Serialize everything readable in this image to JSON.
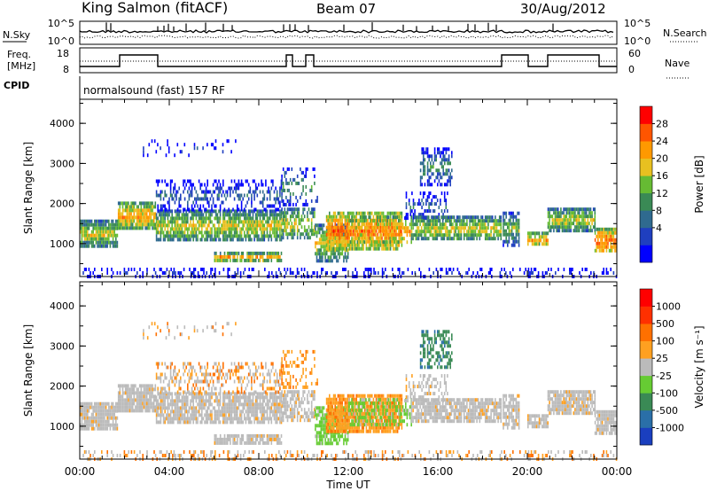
{
  "header": {
    "station": "King Salmon (fitACF)",
    "beam": "Beam 07",
    "date": "30/Aug/2012"
  },
  "panels": {
    "nsky_label": "N.Sky",
    "nsearch_label": "N.Search",
    "nsky_ticks": [
      "10^5",
      "10^0"
    ],
    "nsearch_ticks": [
      "10^5",
      "10^0"
    ],
    "freq_label_1": "Freq.",
    "freq_label_2": "[MHz]",
    "freq_ticks": [
      "18",
      "8"
    ],
    "nave_label": "Nave",
    "nave_ticks": [
      "60",
      "0"
    ],
    "cpid_label": "CPID",
    "cpid_text": "normalsound (fast) 157 RF"
  },
  "chart_data": [
    {
      "type": "heatmap",
      "name": "power",
      "ylabel": "Slant Range [km]",
      "xlabel": "Time UT",
      "xlim": [
        "00:00",
        "24:00"
      ],
      "ylim": [
        180,
        4600
      ],
      "yticks": [
        "4000",
        "3000",
        "2000",
        "1000"
      ],
      "xticks": [
        "00:00",
        "04:00",
        "08:00",
        "12:00",
        "16:00",
        "20:00",
        "00:00"
      ],
      "colorbar_label": "Power [dB]",
      "colorbar_ticks": [
        "28",
        "24",
        "20",
        "16",
        "12",
        "8",
        "4"
      ],
      "colorbar_colors": [
        "#0000ff",
        "#1f3fbf",
        "#2f6a8f",
        "#3a8a55",
        "#66bb33",
        "#e8c020",
        "#ff9900",
        "#ff5500",
        "#ff0000"
      ]
    },
    {
      "type": "heatmap",
      "name": "velocity",
      "ylabel": "Slant Range [km]",
      "xlabel": "Time UT",
      "xlim": [
        "00:00",
        "24:00"
      ],
      "ylim": [
        180,
        4600
      ],
      "yticks": [
        "4000",
        "3000",
        "2000",
        "1000"
      ],
      "xticks": [
        "00:00",
        "04:00",
        "08:00",
        "12:00",
        "16:00",
        "20:00",
        "00:00"
      ],
      "colorbar_label": "Velocity [m s⁻¹]",
      "colorbar_ticks": [
        "1000",
        "500",
        "100",
        "25",
        "-25",
        "-100",
        "-500",
        "-1000"
      ],
      "colorbar_colors": [
        "#1a3fbf",
        "#2a6fa8",
        "#3a8a55",
        "#66cc33",
        "#bbbbbb",
        "#ffa020",
        "#ff7000",
        "#ff3000",
        "#ff0000"
      ],
      "ground_scatter_color": "#bbbbbb"
    }
  ],
  "xaxis_label": "Time UT"
}
